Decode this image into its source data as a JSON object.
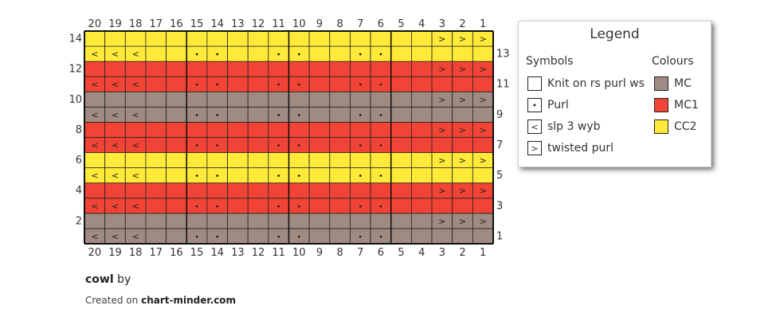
{
  "chart_data": {
    "type": "knitting-chart",
    "columns": 20,
    "rows": 14,
    "column_labels": [
      "20",
      "19",
      "18",
      "17",
      "16",
      "15",
      "14",
      "13",
      "12",
      "11",
      "10",
      "9",
      "8",
      "7",
      "6",
      "5",
      "4",
      "3",
      "2",
      "1"
    ],
    "row_labels_left": [
      "14",
      "12",
      "10",
      "8",
      "6",
      "4",
      "2"
    ],
    "row_labels_right": [
      "13",
      "11",
      "9",
      "7",
      "5",
      "3",
      "1"
    ],
    "row_colors_bottom_to_top": [
      "MC",
      "MC",
      "MC1",
      "MC1",
      "CC2",
      "CC2",
      "MC1",
      "MC1",
      "MC",
      "MC",
      "MC1",
      "MC1",
      "CC2",
      "CC2"
    ],
    "odd_row_pattern_col20_to_col1": [
      "slp",
      "slp",
      "slp",
      "k",
      "k",
      "p",
      "p",
      "k",
      "k",
      "p",
      "p",
      "k",
      "k",
      "p",
      "p",
      "k",
      "k",
      "k",
      "k",
      "k"
    ],
    "even_row_pattern_col20_to_col1": [
      "k",
      "k",
      "k",
      "k",
      "k",
      "k",
      "k",
      "k",
      "k",
      "k",
      "k",
      "k",
      "k",
      "k",
      "k",
      "k",
      "k",
      "tw",
      "tw",
      "tw"
    ],
    "symbol_glyphs": {
      "k": "",
      "p": "•",
      "slp": "<",
      "tw": ">"
    }
  },
  "colors": {
    "MC": "#a08b83",
    "MC1": "#f24436",
    "CC2": "#ffea39",
    "grid": "#222222"
  },
  "legend": {
    "title": "Legend",
    "symbols_heading": "Symbols",
    "colours_heading": "Colours",
    "symbols": [
      {
        "key": "k",
        "label": "Knit on rs purl ws"
      },
      {
        "key": "p",
        "label": "Purl"
      },
      {
        "key": "slp",
        "label": "slp 3 wyb"
      },
      {
        "key": "tw",
        "label": "twisted purl"
      }
    ],
    "colours": [
      {
        "key": "MC",
        "label": "MC"
      },
      {
        "key": "MC1",
        "label": "MC1"
      },
      {
        "key": "CC2",
        "label": "CC2"
      }
    ]
  },
  "footer": {
    "pattern_name": "cowl",
    "by_text": "by",
    "created_prefix": "Created on",
    "site": "chart-minder.com"
  }
}
